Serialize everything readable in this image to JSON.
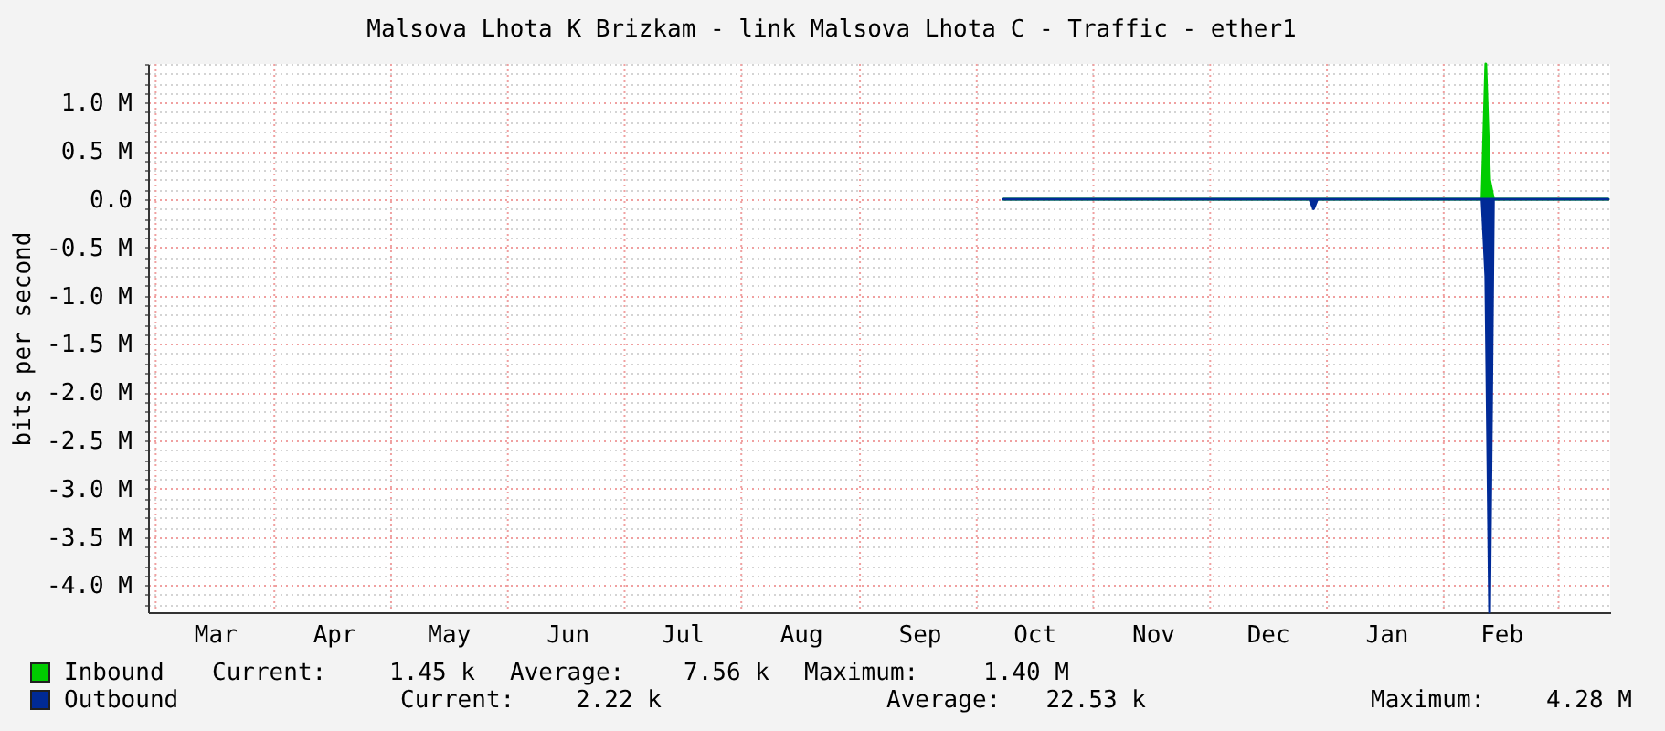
{
  "chart_data": {
    "type": "area",
    "title": "Malsova Lhota K Brizkam - link Malsova Lhota C - Traffic - ether1",
    "ylabel": "bits per second",
    "categories": [
      null,
      null,
      null,
      null,
      null,
      null,
      null,
      null,
      null,
      null,
      null,
      null,
      null,
      null,
      null,
      null,
      null,
      "Mar",
      null,
      null,
      null,
      null,
      null,
      null,
      null,
      null,
      null,
      null,
      null,
      null,
      null,
      null,
      null,
      null,
      null,
      null,
      null,
      null,
      null,
      null,
      null,
      null,
      null,
      null,
      null,
      null,
      null,
      null,
      "Apr",
      null,
      null,
      null,
      null,
      null,
      null,
      null,
      null,
      null,
      null,
      null,
      null,
      null,
      null,
      null,
      null,
      null,
      null,
      null,
      null,
      null,
      null,
      null,
      null,
      null,
      null,
      null,
      null,
      null,
      "May",
      null,
      null,
      null,
      null,
      null,
      null,
      null,
      null,
      null,
      null,
      null,
      null,
      null,
      null,
      null,
      null,
      null,
      null,
      null,
      null,
      null,
      null,
      null,
      null,
      null,
      null,
      null,
      null,
      null,
      null,
      "Jun",
      null,
      null,
      null,
      null,
      null,
      null,
      null,
      null,
      null,
      null,
      null,
      null,
      null,
      null,
      null,
      null,
      null,
      null,
      null,
      null,
      null,
      null,
      null,
      null,
      null,
      null,
      null,
      null,
      null,
      "Jul",
      null,
      null,
      null,
      null,
      null,
      null,
      null,
      null,
      null,
      null,
      null,
      null,
      null,
      null,
      null,
      null,
      null,
      null,
      null,
      null,
      null,
      null,
      null,
      null,
      null,
      null,
      null,
      null,
      null,
      null,
      "Aug",
      null,
      null,
      null,
      null,
      null,
      null,
      null,
      null,
      null,
      null,
      null,
      null,
      null,
      null,
      null,
      null,
      null,
      null,
      null,
      null,
      null,
      null,
      null,
      null,
      null,
      null,
      null,
      null,
      null,
      null,
      "Sep",
      null,
      null,
      null,
      null,
      null,
      null,
      null,
      null,
      null,
      null,
      null,
      null,
      null,
      null,
      null,
      null,
      null,
      null,
      null,
      null,
      null,
      null,
      null,
      null,
      null,
      null,
      null,
      null,
      null,
      "Oct",
      null,
      null,
      null,
      null,
      null,
      null,
      null,
      null,
      null,
      null,
      null,
      null,
      null,
      null,
      null,
      null,
      null,
      null,
      null,
      null,
      null,
      null,
      null,
      null,
      null,
      null,
      null,
      null,
      null,
      null,
      "Nov",
      null,
      null,
      null,
      null,
      null,
      null,
      null,
      null,
      null,
      null,
      null,
      null,
      null,
      null,
      null,
      null,
      null,
      null,
      null,
      null,
      null,
      null,
      null,
      null,
      null,
      null,
      null,
      null,
      null,
      "Dec",
      null,
      null,
      null,
      null,
      null,
      null,
      null,
      null,
      null,
      null,
      null,
      null,
      null,
      null,
      null,
      null,
      null,
      null,
      null,
      null,
      null,
      null,
      null,
      null,
      null,
      null,
      null,
      null,
      null,
      null,
      "Jan",
      null,
      null,
      null,
      null,
      null,
      null,
      null,
      null,
      null,
      null,
      null,
      null,
      null,
      null,
      null,
      null,
      null,
      null,
      null,
      null,
      null,
      null,
      null,
      null,
      null,
      null,
      null,
      null,
      null,
      "Feb",
      null,
      null,
      null,
      null,
      null,
      null,
      null,
      null,
      null,
      null,
      null,
      null,
      null,
      null,
      null,
      null,
      null,
      null,
      null,
      null,
      null,
      null,
      null,
      null,
      null,
      null,
      null,
      null
    ],
    "series": [
      {
        "name": "Inbound",
        "color": "#00cc00",
        "values": [
          null,
          null,
          null,
          null,
          null,
          null,
          null,
          null,
          null,
          null,
          null,
          null,
          null,
          null,
          null,
          null,
          null,
          null,
          null,
          null,
          null,
          null,
          null,
          null,
          null,
          null,
          null,
          null,
          null,
          null,
          null,
          null,
          null,
          null,
          null,
          null,
          null,
          null,
          null,
          null,
          null,
          null,
          null,
          null,
          null,
          null,
          null,
          null,
          null,
          null,
          null,
          null,
          null,
          null,
          null,
          null,
          null,
          null,
          null,
          null,
          null,
          null,
          null,
          null,
          null,
          null,
          null,
          null,
          null,
          null,
          null,
          null,
          null,
          null,
          null,
          null,
          null,
          null,
          null,
          null,
          null,
          null,
          null,
          null,
          null,
          null,
          null,
          null,
          null,
          null,
          null,
          null,
          null,
          null,
          null,
          null,
          null,
          null,
          null,
          null,
          null,
          null,
          null,
          null,
          null,
          null,
          null,
          null,
          null,
          null,
          null,
          null,
          null,
          null,
          null,
          null,
          null,
          null,
          null,
          null,
          null,
          null,
          null,
          null,
          null,
          null,
          null,
          null,
          null,
          null,
          null,
          null,
          null,
          null,
          null,
          null,
          null,
          null,
          null,
          null,
          null,
          null,
          null,
          null,
          null,
          null,
          null,
          null,
          null,
          null,
          null,
          null,
          null,
          null,
          null,
          null,
          null,
          null,
          null,
          null,
          null,
          null,
          null,
          null,
          null,
          null,
          null,
          null,
          null,
          null,
          null,
          null,
          null,
          null,
          null,
          null,
          null,
          null,
          null,
          null,
          null,
          null,
          null,
          null,
          null,
          null,
          null,
          null,
          null,
          null,
          null,
          null,
          null,
          null,
          null,
          null,
          null,
          null,
          null,
          null,
          null,
          null,
          null,
          null,
          null,
          null,
          null,
          null,
          null,
          null,
          null,
          null,
          null,
          null,
          null,
          null,
          null,
          null,
          null,
          null,
          null,
          null,
          null,
          0,
          0,
          0,
          0,
          0,
          0,
          0,
          0,
          0,
          0,
          0,
          0,
          0,
          0,
          0,
          0,
          0,
          0,
          0,
          0,
          0,
          0,
          0,
          0,
          0,
          0,
          0,
          0,
          0,
          0,
          0,
          0,
          0,
          0,
          0,
          0,
          0,
          0,
          0,
          0,
          0,
          0,
          0,
          0,
          0,
          0,
          0,
          0,
          0,
          0,
          0,
          0,
          0,
          0,
          0,
          0,
          0,
          0,
          0,
          0,
          0,
          0,
          0,
          0,
          0,
          0,
          0,
          0,
          0,
          0,
          0,
          0,
          0,
          0,
          0,
          0,
          0,
          0,
          0,
          0,
          0,
          0,
          0,
          0,
          0,
          0,
          0,
          0,
          0,
          0,
          0,
          0,
          0,
          0,
          0,
          0,
          0,
          0,
          0,
          0,
          0,
          0,
          0,
          0,
          0,
          0,
          0,
          0,
          0,
          0,
          0,
          0,
          0,
          0,
          0,
          0,
          0,
          0,
          0,
          0,
          0,
          0,
          0,
          0,
          0,
          0,
          1.4,
          0.2,
          0,
          0,
          0,
          0,
          0,
          0,
          0,
          0,
          0,
          0,
          0,
          0,
          0,
          0,
          0,
          0,
          0,
          0,
          0,
          0,
          0,
          0,
          0,
          0,
          0,
          0,
          0,
          0,
          0,
          0,
          0
        ]
      },
      {
        "name": "Outbound",
        "color": "#002a97",
        "values": [
          null,
          null,
          null,
          null,
          null,
          null,
          null,
          null,
          null,
          null,
          null,
          null,
          null,
          null,
          null,
          null,
          null,
          null,
          null,
          null,
          null,
          null,
          null,
          null,
          null,
          null,
          null,
          null,
          null,
          null,
          null,
          null,
          null,
          null,
          null,
          null,
          null,
          null,
          null,
          null,
          null,
          null,
          null,
          null,
          null,
          null,
          null,
          null,
          null,
          null,
          null,
          null,
          null,
          null,
          null,
          null,
          null,
          null,
          null,
          null,
          null,
          null,
          null,
          null,
          null,
          null,
          null,
          null,
          null,
          null,
          null,
          null,
          null,
          null,
          null,
          null,
          null,
          null,
          null,
          null,
          null,
          null,
          null,
          null,
          null,
          null,
          null,
          null,
          null,
          null,
          null,
          null,
          null,
          null,
          null,
          null,
          null,
          null,
          null,
          null,
          null,
          null,
          null,
          null,
          null,
          null,
          null,
          null,
          null,
          null,
          null,
          null,
          null,
          null,
          null,
          null,
          null,
          null,
          null,
          null,
          null,
          null,
          null,
          null,
          null,
          null,
          null,
          null,
          null,
          null,
          null,
          null,
          null,
          null,
          null,
          null,
          null,
          null,
          null,
          null,
          null,
          null,
          null,
          null,
          null,
          null,
          null,
          null,
          null,
          null,
          null,
          null,
          null,
          null,
          null,
          null,
          null,
          null,
          null,
          null,
          null,
          null,
          null,
          null,
          null,
          null,
          null,
          null,
          null,
          null,
          null,
          null,
          null,
          null,
          null,
          null,
          null,
          null,
          null,
          null,
          null,
          null,
          null,
          null,
          null,
          null,
          null,
          null,
          null,
          null,
          null,
          null,
          null,
          null,
          null,
          null,
          null,
          null,
          null,
          null,
          null,
          null,
          null,
          null,
          null,
          null,
          null,
          null,
          null,
          null,
          null,
          null,
          null,
          null,
          null,
          null,
          null,
          null,
          null,
          null,
          null,
          null,
          null,
          0,
          0,
          0,
          0,
          0,
          0,
          0,
          0,
          0,
          0,
          0,
          0,
          0,
          0,
          0,
          0,
          0,
          0,
          0,
          0,
          0,
          0,
          0,
          0,
          0,
          0,
          0,
          0,
          0,
          0,
          0,
          0,
          0,
          0,
          0,
          0,
          0,
          0,
          0,
          0,
          0,
          0,
          0,
          0,
          0,
          0,
          0,
          0,
          0,
          0,
          0,
          0,
          0,
          0,
          0,
          0,
          0,
          0,
          0,
          0,
          0,
          0,
          0,
          0,
          0,
          0,
          0,
          0,
          0,
          0,
          0,
          0,
          0,
          0,
          0,
          0,
          0,
          0,
          0,
          0,
          0,
          -0.1,
          0,
          0,
          0,
          0,
          0,
          0,
          0,
          0,
          0,
          0,
          0,
          0,
          0,
          0,
          0,
          0,
          0,
          0,
          0,
          0,
          0,
          0,
          0,
          0,
          0,
          0,
          0,
          0,
          0,
          0,
          0,
          0,
          0,
          0,
          0,
          0,
          0,
          0,
          0,
          0,
          0,
          0,
          0,
          0,
          -0.8,
          -4.28,
          0,
          0,
          0,
          0,
          0,
          0,
          0,
          0,
          0,
          0,
          0,
          0,
          0,
          0,
          0,
          0,
          0,
          0,
          0,
          0,
          0,
          0,
          0,
          0,
          0,
          0,
          0,
          0,
          0,
          0,
          0
        ]
      }
    ],
    "ylim": [
      -4.28,
      1.4
    ],
    "yticks": [
      {
        "value": -4.2,
        "label": null
      },
      {
        "value": -4.1,
        "label": null
      },
      {
        "value": -4.0,
        "label": "-4.0 M"
      },
      {
        "value": -3.9,
        "label": null
      },
      {
        "value": -3.8,
        "label": null
      },
      {
        "value": -3.7,
        "label": null
      },
      {
        "value": -3.6,
        "label": null
      },
      {
        "value": -3.5,
        "label": "-3.5 M"
      },
      {
        "value": -3.4,
        "label": null
      },
      {
        "value": -3.3,
        "label": null
      },
      {
        "value": -3.2,
        "label": null
      },
      {
        "value": -3.1,
        "label": null
      },
      {
        "value": -3.0,
        "label": "-3.0 M"
      },
      {
        "value": -2.9,
        "label": null
      },
      {
        "value": -2.8,
        "label": null
      },
      {
        "value": -2.7,
        "label": null
      },
      {
        "value": -2.6,
        "label": null
      },
      {
        "value": -2.5,
        "label": "-2.5 M"
      },
      {
        "value": -2.4,
        "label": null
      },
      {
        "value": -2.3,
        "label": null
      },
      {
        "value": -2.2,
        "label": null
      },
      {
        "value": -2.1,
        "label": null
      },
      {
        "value": -2.0,
        "label": "-2.0 M"
      },
      {
        "value": -1.9,
        "label": null
      },
      {
        "value": -1.8,
        "label": null
      },
      {
        "value": -1.7,
        "label": null
      },
      {
        "value": -1.6,
        "label": null
      },
      {
        "value": -1.5,
        "label": "-1.5 M"
      },
      {
        "value": -1.4,
        "label": null
      },
      {
        "value": -1.3,
        "label": null
      },
      {
        "value": -1.2,
        "label": null
      },
      {
        "value": -1.1,
        "label": null
      },
      {
        "value": -1.0,
        "label": "-1.0 M"
      },
      {
        "value": -0.9,
        "label": null
      },
      {
        "value": -0.8,
        "label": null
      },
      {
        "value": -0.7,
        "label": null
      },
      {
        "value": -0.6,
        "label": null
      },
      {
        "value": -0.5,
        "label": "-0.5 M"
      },
      {
        "value": -0.4,
        "label": null
      },
      {
        "value": -0.3,
        "label": null
      },
      {
        "value": -0.2,
        "label": null
      },
      {
        "value": -0.1,
        "label": null
      },
      {
        "value": 0,
        "label": "0.0"
      },
      {
        "value": 0.1,
        "label": null
      },
      {
        "value": 0.2,
        "label": null
      },
      {
        "value": 0.3,
        "label": null
      },
      {
        "value": 0.4,
        "label": null
      },
      {
        "value": 0.5,
        "label": "0.5 M"
      },
      {
        "value": 0.6,
        "label": null
      },
      {
        "value": 0.7,
        "label": null
      },
      {
        "value": 0.8,
        "label": null
      },
      {
        "value": 0.9,
        "label": null
      },
      {
        "value": 1.0,
        "label": "1.0 M"
      },
      {
        "value": 1.1,
        "label": null
      },
      {
        "value": 1.2,
        "label": null
      },
      {
        "value": 1.3,
        "label": null
      },
      {
        "value": 1.4,
        "label": null
      }
    ],
    "grid": true,
    "legend": "bottom",
    "annotations": [
      "Current:",
      "1.45 k",
      "Average:",
      "7.56 k",
      "Maximum:",
      "1.40 M",
      "Current:",
      "2.22 k",
      "Average:",
      "22.53 k",
      "Maximum:",
      "4.28 M"
    ]
  }
}
